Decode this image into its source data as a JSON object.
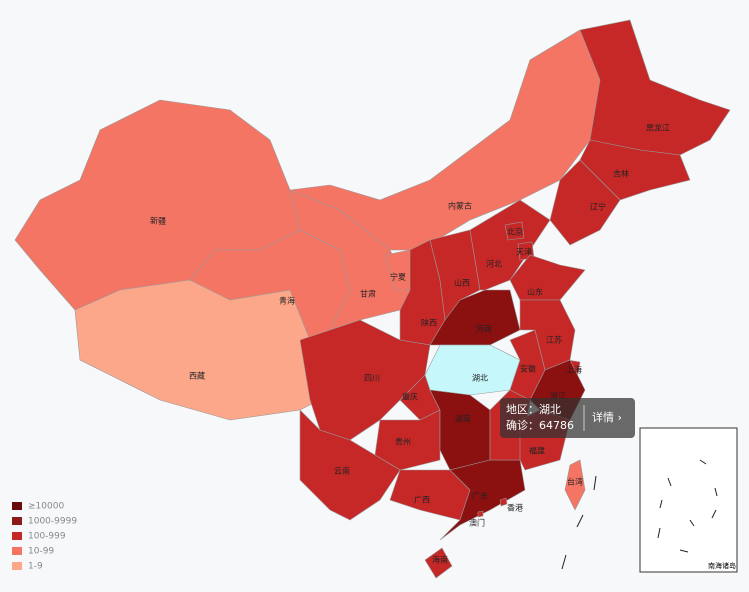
{
  "map": {
    "provinces": [
      {
        "name": "新疆",
        "color": "#f47564"
      },
      {
        "name": "西藏",
        "color": "#fda78a"
      },
      {
        "name": "青海",
        "color": "#f47564"
      },
      {
        "name": "甘肃",
        "color": "#f47564"
      },
      {
        "name": "内蒙古",
        "color": "#f47564"
      },
      {
        "name": "黑龙江",
        "color": "#c62828"
      },
      {
        "name": "吉林",
        "color": "#c62828"
      },
      {
        "name": "辽宁",
        "color": "#c62828"
      },
      {
        "name": "宁夏",
        "color": "#f47564"
      },
      {
        "name": "陕西",
        "color": "#c62828"
      },
      {
        "name": "山西",
        "color": "#c62828"
      },
      {
        "name": "河北",
        "color": "#c62828"
      },
      {
        "name": "北京",
        "color": "#c62828"
      },
      {
        "name": "天津",
        "color": "#c62828"
      },
      {
        "name": "山东",
        "color": "#c62828"
      },
      {
        "name": "河南",
        "color": "#8b1010"
      },
      {
        "name": "湖北",
        "color": "#c6f7fb"
      },
      {
        "name": "四川",
        "color": "#c62828"
      },
      {
        "name": "重庆",
        "color": "#c62828"
      },
      {
        "name": "贵州",
        "color": "#c62828"
      },
      {
        "name": "云南",
        "color": "#c62828"
      },
      {
        "name": "湖南",
        "color": "#8b1010"
      },
      {
        "name": "广西",
        "color": "#c62828"
      },
      {
        "name": "广东",
        "color": "#8b1010"
      },
      {
        "name": "海南",
        "color": "#c62828"
      },
      {
        "name": null,
        "color": "#c62828"
      },
      {
        "name": "安徽",
        "color": "#c62828"
      },
      {
        "name": "江苏",
        "color": "#c62828"
      },
      {
        "name": "上海",
        "color": "#c62828"
      },
      {
        "name": "浙江",
        "color": "#8b1010"
      },
      {
        "name": "福建",
        "color": "#c62828"
      },
      {
        "name": "台湾",
        "color": "#f47564"
      },
      {
        "name": "香港",
        "color": "#c62828"
      },
      {
        "name": "澳门",
        "color": "#c62828"
      }
    ],
    "legend": [
      {
        "label": "≥10000",
        "color": "#6b0a0a"
      },
      {
        "label": "1000-9999",
        "color": "#8b1a1a"
      },
      {
        "label": "100-999",
        "color": "#c62828"
      },
      {
        "label": "10-99",
        "color": "#f47564"
      },
      {
        "label": "1-9",
        "color": "#fda78a"
      }
    ],
    "tooltip": {
      "region_label": "地区：",
      "region": "湖北",
      "confirmed_label": "确诊：",
      "confirmed": 64786,
      "detail": "详情 ›"
    },
    "inset_label": "南海诸岛"
  }
}
